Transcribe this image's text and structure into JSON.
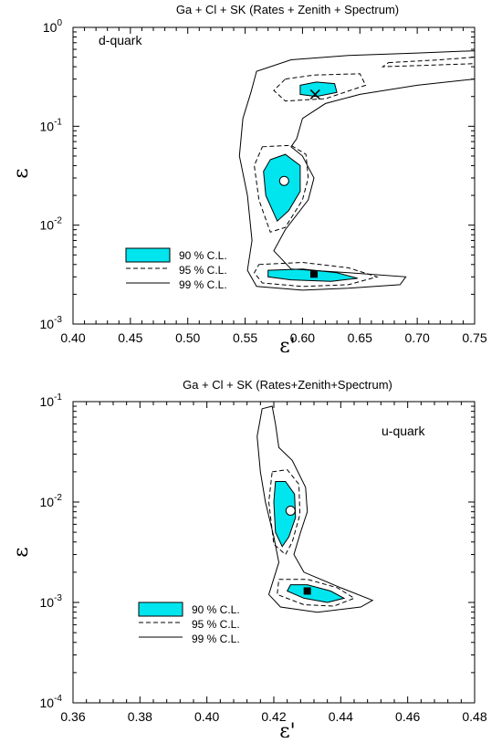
{
  "colors": {
    "cl90": "#00e5ee",
    "line": "#000000"
  },
  "chart_data": [
    {
      "type": "contour",
      "title": "Ga + Cl + SK (Rates + Zenith + Spectrum)",
      "panel_label": "d-quark",
      "xlabel": "ε'",
      "ylabel": "ε",
      "xlim": [
        0.4,
        0.75
      ],
      "ylim": [
        0.001,
        1
      ],
      "yscale": "log",
      "x_ticks": [
        "0.40",
        "0.45",
        "0.50",
        "0.55",
        "0.60",
        "0.65",
        "0.70",
        "0.75"
      ],
      "y_ticks": [
        {
          "base": "10",
          "exp": "-3"
        },
        {
          "base": "10",
          "exp": "-2"
        },
        {
          "base": "10",
          "exp": "-1"
        },
        {
          "base": "10",
          "exp": "0"
        }
      ],
      "legend": [
        "90 % C.L.",
        "95 % C.L.",
        "99 % C.L."
      ],
      "markers": [
        {
          "symbol": "cross",
          "x": 0.611,
          "y": 0.21
        },
        {
          "symbol": "circle",
          "x": 0.584,
          "y": 0.028
        },
        {
          "symbol": "square",
          "x": 0.61,
          "y": 0.0032
        }
      ],
      "regions": {
        "cl90": [
          [
            [
              0.598,
              0.26
            ],
            [
              0.612,
              0.28
            ],
            [
              0.628,
              0.27
            ],
            [
              0.63,
              0.22
            ],
            [
              0.612,
              0.2
            ],
            [
              0.598,
              0.21
            ]
          ],
          [
            [
              0.572,
              0.046
            ],
            [
              0.585,
              0.052
            ],
            [
              0.598,
              0.04
            ],
            [
              0.598,
              0.022
            ],
            [
              0.588,
              0.014
            ],
            [
              0.578,
              0.011
            ],
            [
              0.568,
              0.02
            ],
            [
              0.566,
              0.035
            ]
          ],
          [
            [
              0.57,
              0.0035
            ],
            [
              0.6,
              0.0036
            ],
            [
              0.63,
              0.0033
            ],
            [
              0.648,
              0.0029
            ],
            [
              0.625,
              0.0027
            ],
            [
              0.59,
              0.0028
            ],
            [
              0.57,
              0.003
            ]
          ]
        ],
        "cl95": [
          [
            [
              0.585,
              0.3
            ],
            [
              0.61,
              0.33
            ],
            [
              0.65,
              0.34
            ],
            [
              0.655,
              0.26
            ],
            [
              0.62,
              0.19
            ],
            [
              0.585,
              0.18
            ],
            [
              0.575,
              0.23
            ]
          ],
          [
            [
              0.675,
              0.44
            ],
            [
              0.72,
              0.47
            ],
            [
              0.75,
              0.5
            ],
            [
              0.75,
              0.43
            ],
            [
              0.7,
              0.41
            ],
            [
              0.67,
              0.4
            ]
          ],
          [
            [
              0.565,
              0.062
            ],
            [
              0.59,
              0.064
            ],
            [
              0.603,
              0.052
            ],
            [
              0.605,
              0.03
            ],
            [
              0.6,
              0.018
            ],
            [
              0.585,
              0.0095
            ],
            [
              0.572,
              0.0085
            ],
            [
              0.562,
              0.018
            ],
            [
              0.558,
              0.04
            ]
          ],
          [
            [
              0.562,
              0.004
            ],
            [
              0.6,
              0.0042
            ],
            [
              0.64,
              0.0037
            ],
            [
              0.665,
              0.003
            ],
            [
              0.64,
              0.0025
            ],
            [
              0.6,
              0.0024
            ],
            [
              0.565,
              0.0026
            ],
            [
              0.558,
              0.0033
            ]
          ]
        ],
        "cl99": [
          [
            [
              0.555,
              0.22
            ],
            [
              0.56,
              0.36
            ],
            [
              0.59,
              0.47
            ],
            [
              0.64,
              0.52
            ],
            [
              0.7,
              0.55
            ],
            [
              0.75,
              0.58
            ],
            [
              0.75,
              0.3
            ],
            [
              0.7,
              0.26
            ],
            [
              0.65,
              0.21
            ],
            [
              0.62,
              0.17
            ],
            [
              0.6,
              0.12
            ],
            [
              0.595,
              0.075
            ],
            [
              0.59,
              0.062
            ],
            [
              0.6,
              0.05
            ],
            [
              0.61,
              0.03
            ],
            [
              0.605,
              0.018
            ],
            [
              0.585,
              0.009
            ],
            [
              0.575,
              0.0055
            ],
            [
              0.59,
              0.0036
            ],
            [
              0.64,
              0.0033
            ],
            [
              0.69,
              0.003
            ],
            [
              0.685,
              0.0025
            ],
            [
              0.64,
              0.0023
            ],
            [
              0.6,
              0.0022
            ],
            [
              0.56,
              0.0024
            ],
            [
              0.552,
              0.0035
            ],
            [
              0.556,
              0.007
            ],
            [
              0.552,
              0.02
            ],
            [
              0.545,
              0.05
            ],
            [
              0.548,
              0.12
            ]
          ]
        ]
      }
    },
    {
      "type": "contour",
      "title": "Ga + Cl + SK (Rates+Zenith+Spectrum)",
      "panel_label": "u-quark",
      "xlabel": "ε'",
      "ylabel": "ε",
      "xlim": [
        0.36,
        0.48
      ],
      "ylim": [
        0.0001,
        0.1
      ],
      "yscale": "log",
      "x_ticks": [
        "0.36",
        "0.38",
        "0.40",
        "0.42",
        "0.44",
        "0.46",
        "0.48"
      ],
      "y_ticks": [
        {
          "base": "10",
          "exp": "-4"
        },
        {
          "base": "10",
          "exp": "-3"
        },
        {
          "base": "10",
          "exp": "-2"
        },
        {
          "base": "10",
          "exp": "-1"
        }
      ],
      "legend": [
        "90 % C.L.",
        "95 % C.L.",
        "99 % C.L."
      ],
      "markers": [
        {
          "symbol": "circle",
          "x": 0.425,
          "y": 0.0082
        },
        {
          "symbol": "square",
          "x": 0.43,
          "y": 0.0013
        }
      ],
      "regions": {
        "cl90": [
          [
            [
              0.4205,
              0.016
            ],
            [
              0.4235,
              0.016
            ],
            [
              0.4262,
              0.012
            ],
            [
              0.4265,
              0.007
            ],
            [
              0.4245,
              0.0045
            ],
            [
              0.4225,
              0.0036
            ],
            [
              0.4205,
              0.005
            ],
            [
              0.42,
              0.01
            ]
          ],
          [
            [
              0.425,
              0.0015
            ],
            [
              0.43,
              0.0015
            ],
            [
              0.437,
              0.0013
            ],
            [
              0.441,
              0.0011
            ],
            [
              0.436,
              0.001
            ],
            [
              0.429,
              0.0011
            ],
            [
              0.424,
              0.0013
            ]
          ]
        ],
        "cl95": [
          [
            [
              0.4195,
              0.02
            ],
            [
              0.424,
              0.021
            ],
            [
              0.4275,
              0.015
            ],
            [
              0.4278,
              0.0075
            ],
            [
              0.4255,
              0.004
            ],
            [
              0.4235,
              0.003
            ],
            [
              0.42,
              0.0038
            ],
            [
              0.4185,
              0.01
            ]
          ],
          [
            [
              0.4215,
              0.0017
            ],
            [
              0.43,
              0.0017
            ],
            [
              0.439,
              0.0014
            ],
            [
              0.444,
              0.0011
            ],
            [
              0.438,
              0.00092
            ],
            [
              0.429,
              0.00095
            ],
            [
              0.421,
              0.0012
            ]
          ]
        ],
        "cl99": [
          [
            [
              0.4165,
              0.085
            ],
            [
              0.4195,
              0.09
            ],
            [
              0.4205,
              0.06
            ],
            [
              0.4215,
              0.035
            ],
            [
              0.4255,
              0.026
            ],
            [
              0.4295,
              0.014
            ],
            [
              0.43,
              0.008
            ],
            [
              0.428,
              0.005
            ],
            [
              0.426,
              0.003
            ],
            [
              0.429,
              0.002
            ],
            [
              0.44,
              0.0014
            ],
            [
              0.4495,
              0.00105
            ],
            [
              0.446,
              0.0009
            ],
            [
              0.433,
              0.0008
            ],
            [
              0.422,
              0.0009
            ],
            [
              0.4185,
              0.0012
            ],
            [
              0.4215,
              0.0025
            ],
            [
              0.42,
              0.0045
            ],
            [
              0.4175,
              0.01
            ],
            [
              0.416,
              0.02
            ],
            [
              0.415,
              0.045
            ]
          ]
        ]
      }
    }
  ]
}
